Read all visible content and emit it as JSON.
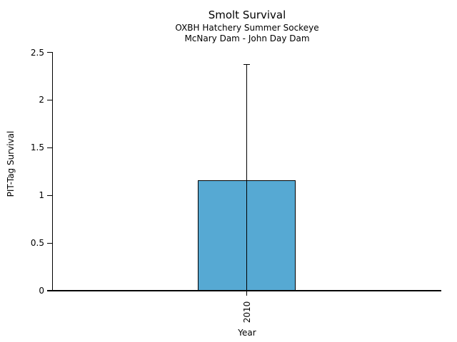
{
  "chart_data": {
    "type": "bar",
    "title": "Smolt Survival",
    "subtitle_lines": [
      "OXBH Hatchery Summer Sockeye",
      "McNary Dam - John Day Dam"
    ],
    "xlabel": "Year",
    "ylabel": "PIT-Tag Survival",
    "categories": [
      "2010"
    ],
    "values": [
      1.16
    ],
    "error_upper": [
      2.37
    ],
    "ylim": [
      0,
      2.5
    ],
    "yticks": [
      0,
      0.5,
      1,
      1.5,
      2,
      2.5
    ],
    "ytick_labels": [
      "0",
      "0.5",
      "1",
      "1.5",
      "2",
      "2.5"
    ],
    "xtick_rotation_deg": 90,
    "grid": false,
    "legend": "none",
    "colors": {
      "bar_fill": "#56a9d3",
      "bar_border": "#000000",
      "axis": "#000000",
      "text": "#000000",
      "background": "#ffffff"
    }
  }
}
